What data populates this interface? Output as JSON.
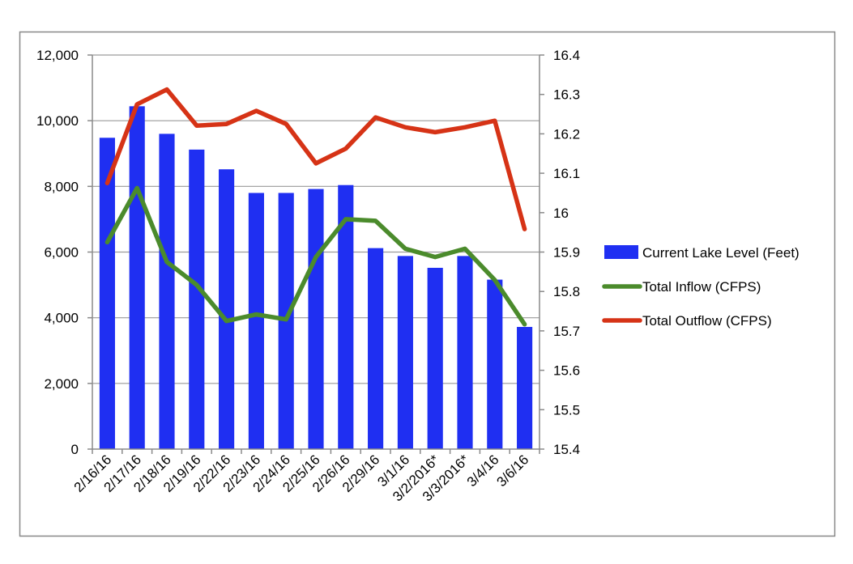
{
  "chart_data": {
    "type": "bar",
    "title": "",
    "xlabel": "",
    "ylabel": "",
    "categories": [
      "2/16/16",
      "2/17/16",
      "2/18/16",
      "2/19/16",
      "2/22/16",
      "2/23/16",
      "2/24/16",
      "2/25/16",
      "2/26/16",
      "2/29/16",
      "3/1/16",
      "3/2/2016*",
      "3/3/2016*",
      "3/4/16",
      "3/6/16"
    ],
    "left_axis": {
      "ylim": [
        0,
        12000
      ],
      "ticks": [
        0,
        2000,
        4000,
        6000,
        8000,
        10000,
        12000
      ],
      "tick_labels": [
        "0",
        "2,000",
        "4,000",
        "6,000",
        "8,000",
        "10,000",
        "12,000"
      ]
    },
    "right_axis": {
      "ylim": [
        15.4,
        16.4
      ],
      "ticks": [
        15.4,
        15.5,
        15.6,
        15.7,
        15.8,
        15.9,
        16.0,
        16.1,
        16.2,
        16.3,
        16.4
      ],
      "tick_labels": [
        "15.4",
        "15.5",
        "15.6",
        "15.7",
        "15.8",
        "15.9",
        "16",
        "16.1",
        "16.2",
        "16.3",
        "16.4"
      ]
    },
    "grid": true,
    "legend_position": "right",
    "series": [
      {
        "name": "Current Lake Level (Feet)",
        "type": "bar",
        "axis": "right",
        "color": "#1f2ff2",
        "values": [
          16.19,
          16.27,
          16.2,
          16.16,
          16.11,
          16.05,
          16.05,
          16.06,
          16.07,
          15.91,
          15.89,
          15.86,
          15.89,
          15.83,
          15.71
        ]
      },
      {
        "name": "Total Inflow (CFPS)",
        "type": "line",
        "axis": "left",
        "color": "#4b8b2c",
        "values": [
          6300,
          7950,
          5700,
          5000,
          3900,
          4100,
          3950,
          5850,
          7000,
          6950,
          6100,
          5850,
          6100,
          5150,
          3800
        ]
      },
      {
        "name": "Total Outflow (CFPS)",
        "type": "line",
        "axis": "left",
        "color": "#d63316",
        "values": [
          8100,
          10500,
          10950,
          9850,
          9900,
          10300,
          9900,
          8700,
          9150,
          10100,
          9800,
          9650,
          9800,
          10000,
          6700
        ]
      }
    ]
  }
}
